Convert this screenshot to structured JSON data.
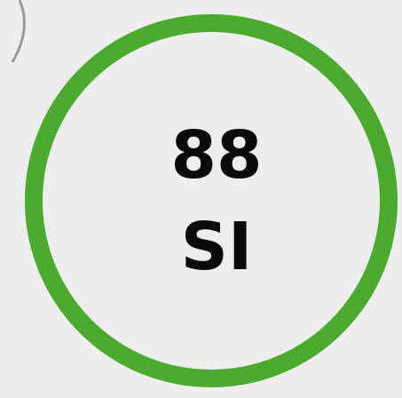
{
  "badge": {
    "number": "88",
    "unit": "SI"
  }
}
